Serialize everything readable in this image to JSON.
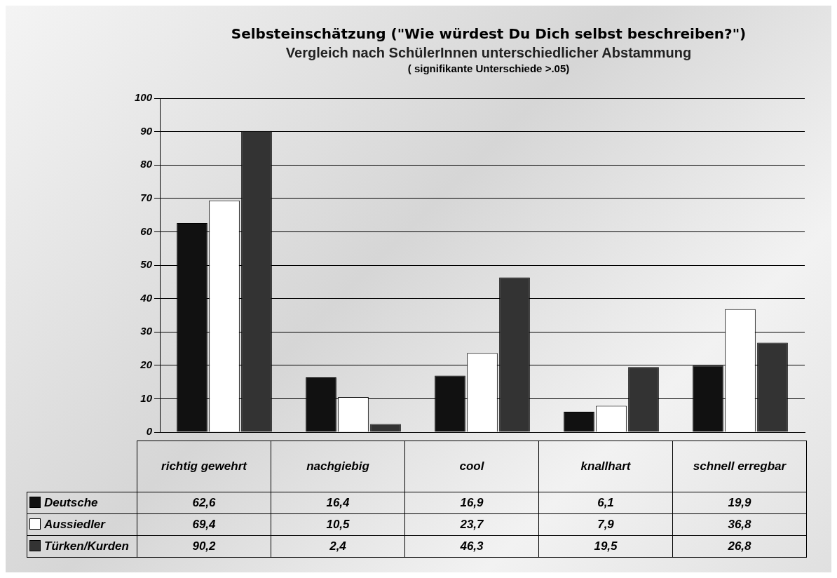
{
  "chart_data": {
    "type": "bar",
    "title": "Selbsteinschätzung (\"Wie würdest Du Dich selbst beschreiben?\")",
    "subtitle": "Vergleich nach SchülerInnen unterschiedlicher Abstammung",
    "annotations": [
      "( signifikante Unterschiede >.05)"
    ],
    "categories": [
      "richtig gewehrt",
      "nachgiebig",
      "cool",
      "knallhart",
      "schnell erregbar"
    ],
    "series": [
      {
        "name": "Deutsche",
        "color": "#111111",
        "values": [
          62.6,
          16.4,
          16.9,
          6.1,
          19.9
        ],
        "value_labels": [
          "62,6",
          "16,4",
          "16,9",
          "6,1",
          "19,9"
        ]
      },
      {
        "name": "Aussiedler",
        "color": "#ffffff",
        "values": [
          69.4,
          10.5,
          23.7,
          7.9,
          36.8
        ],
        "value_labels": [
          "69,4",
          "10,5",
          "23,7",
          "7,9",
          "36,8"
        ]
      },
      {
        "name": "Türken/Kurden",
        "color": "#333333",
        "values": [
          90.2,
          2.4,
          46.3,
          19.5,
          26.8
        ],
        "value_labels": [
          "90,2",
          "2,4",
          "46,3",
          "19,5",
          "26,8"
        ]
      }
    ],
    "ylim": [
      0,
      100
    ],
    "yticks": [
      0,
      10,
      20,
      30,
      40,
      50,
      60,
      70,
      80,
      90,
      100
    ],
    "grid": "y",
    "legend": "bottom left"
  }
}
